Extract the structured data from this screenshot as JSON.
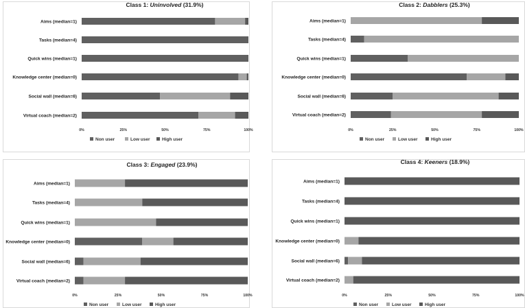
{
  "colors": {
    "non_user": "#606060",
    "low_user": "#a6a6a6",
    "high_user": "#595959"
  },
  "chart_data": [
    {
      "type": "bar",
      "orientation": "horizontal-stacked-percent",
      "title_prefix": "Class 1: ",
      "title_name": "Uninvolved",
      "title_suffix": " (31.9%)",
      "categories": [
        "Aims (median=1)",
        "Tasks (median=4)",
        "Quick wins (median=1)",
        "Knowledge center (median=0)",
        "Social wall (median=6)",
        "Virtual coach (median=2)"
      ],
      "series": [
        {
          "name": "Non user",
          "values": [
            80,
            100,
            100,
            94,
            47,
            70
          ]
        },
        {
          "name": "Low user",
          "values": [
            18,
            0,
            0,
            5,
            42,
            22
          ]
        },
        {
          "name": "High user",
          "values": [
            2,
            0,
            0,
            1,
            11,
            8
          ]
        }
      ],
      "ticks": [
        "0%",
        "25%",
        "50%",
        "75%",
        "100%"
      ],
      "xlim": [
        0,
        100
      ]
    },
    {
      "type": "bar",
      "orientation": "horizontal-stacked-percent",
      "title_prefix": "Class 2: ",
      "title_name": "Dabblers",
      "title_suffix": " (25.3%)",
      "categories": [
        "Aims (median=1)",
        "Tasks (median=4)",
        "Quick wins (median=1)",
        "Knowledge center (median=0)",
        "Social wall (median=6)",
        "Virtual coach (median=2)"
      ],
      "series": [
        {
          "name": "Non user",
          "values": [
            0,
            8,
            34,
            69,
            25,
            24
          ]
        },
        {
          "name": "Low user",
          "values": [
            78,
            92,
            66,
            23,
            63,
            54
          ]
        },
        {
          "name": "High user",
          "values": [
            22,
            0,
            0,
            8,
            12,
            22
          ]
        }
      ],
      "ticks": [
        "0%",
        "25%",
        "50%",
        "75%",
        "100%"
      ],
      "xlim": [
        0,
        100
      ]
    },
    {
      "type": "bar",
      "orientation": "horizontal-stacked-percent",
      "title_prefix": "Class 3: ",
      "title_name": "Engaged",
      "title_suffix": " (23.9%)",
      "categories": [
        "Aims (median=1)",
        "Tasks (median=4)",
        "Quick wins (median=1)",
        "Knowledge center (median=0)",
        "Social wall (median=6)",
        "Virtual coach (median=2)"
      ],
      "series": [
        {
          "name": "Non user",
          "values": [
            0,
            0,
            0,
            39,
            5,
            5
          ]
        },
        {
          "name": "Low user",
          "values": [
            29,
            39,
            47,
            18,
            33,
            24
          ]
        },
        {
          "name": "High user",
          "values": [
            71,
            61,
            53,
            43,
            62,
            71
          ]
        }
      ],
      "ticks": [
        "0%",
        "25%",
        "50%",
        "75%",
        "100%"
      ],
      "xlim": [
        0,
        100
      ]
    },
    {
      "type": "bar",
      "orientation": "horizontal-stacked-percent",
      "title_prefix": "Class 4: ",
      "title_name": "Keeners",
      "title_suffix": " (18.9%)",
      "categories": [
        "Aims (median=1)",
        "Tasks (median=4)",
        "Quick wins (median=1)",
        "Knowledge center (median=0)",
        "Social wall (median=6)",
        "Virtual coach (median=2)"
      ],
      "series": [
        {
          "name": "Non user",
          "values": [
            0,
            0,
            0,
            0,
            2,
            0
          ]
        },
        {
          "name": "Low user",
          "values": [
            0,
            0,
            0,
            8,
            8,
            5
          ]
        },
        {
          "name": "High user",
          "values": [
            100,
            100,
            100,
            92,
            90,
            95
          ]
        }
      ],
      "ticks": [
        "0%",
        "25%",
        "50%",
        "75%",
        "100%"
      ],
      "xlim": [
        0,
        100
      ]
    }
  ]
}
